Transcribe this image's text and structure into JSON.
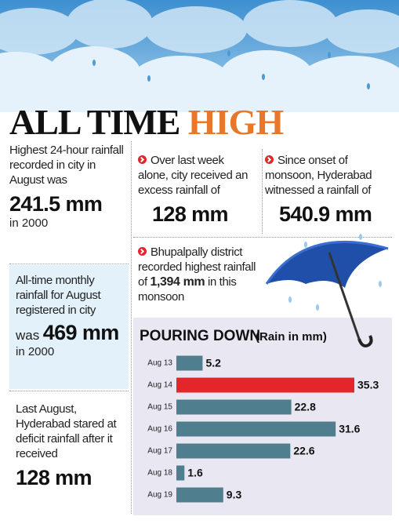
{
  "header": {
    "title_main": "ALL TIME",
    "title_highlight": "HIGH"
  },
  "panels": [
    {
      "text": "Highest 24-hour rainfall recorded in city in August was",
      "figure": "241.5 mm",
      "note": "in 2000"
    },
    {
      "text": "All-time monthly rainfall for August registered in city",
      "prefix": "was",
      "figure": "469 mm",
      "note": "in 2000"
    },
    {
      "text": "Last August, Hyderabad stared at deficit rainfall after it received",
      "figure": "128 mm"
    },
    {
      "text": "Over last week alone, city received an excess rainfall of",
      "figure": "128 mm"
    },
    {
      "text": "Since onset of monsoon, Hyderabad witnessed a rainfall of",
      "figure": "540.9 mm"
    },
    {
      "text": "Bhupalpally district recorded highest rainfall of",
      "figure": "1,394 mm",
      "note": "in this monsoon"
    }
  ],
  "chart_data": {
    "type": "bar",
    "orientation": "horizontal",
    "title": "POURING DOWN",
    "subtitle": "(Rain in mm)",
    "categories": [
      "Aug 13",
      "Aug 14",
      "Aug 15",
      "Aug 16",
      "Aug 17",
      "Aug 18",
      "Aug 19"
    ],
    "values": [
      5.2,
      35.3,
      22.8,
      31.6,
      22.6,
      1.6,
      9.3
    ],
    "colors": [
      "#4f7f8f",
      "#e3262b",
      "#4f7f8f",
      "#4f7f8f",
      "#4f7f8f",
      "#4f7f8f",
      "#4f7f8f"
    ]
  }
}
